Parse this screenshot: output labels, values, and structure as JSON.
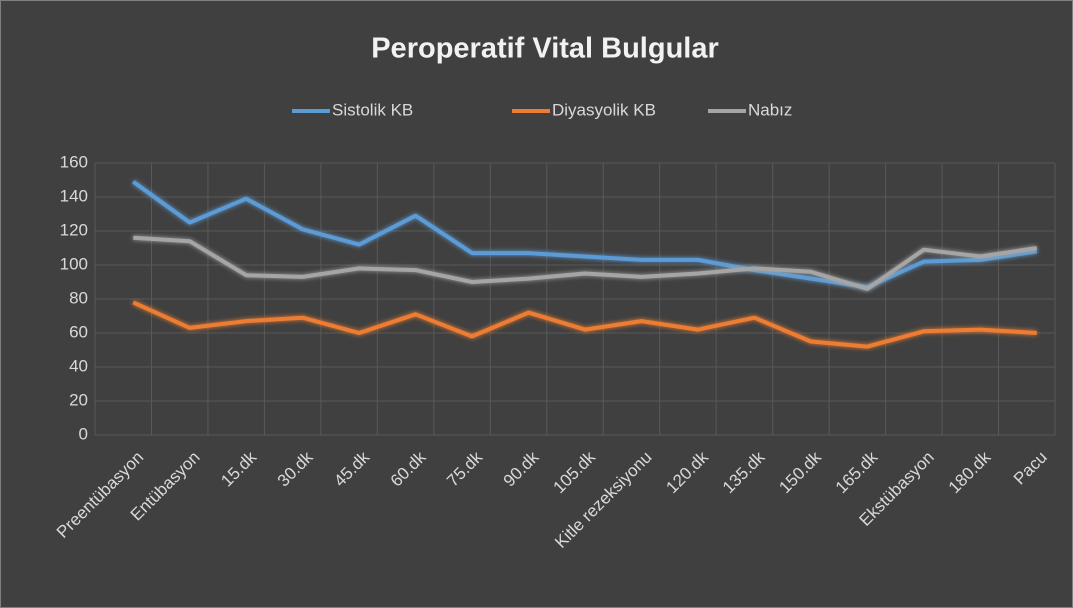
{
  "chart_data": {
    "type": "line",
    "title": "Peroperatif Vital Bulgular",
    "categories": [
      "Preentübasyon",
      "Entübasyon",
      "15.dk",
      "30.dk",
      "45.dk",
      "60.dk",
      "75.dk",
      "90.dk",
      "105.dk",
      "Kitle rezeksiyonu",
      "120.dk",
      "135.dk",
      "150.dk",
      "165.dk",
      "Ekstübasyon",
      "180.dk",
      "Pacu"
    ],
    "series": [
      {
        "name": "Sistolik KB",
        "color": "#5b9bd5",
        "values": [
          149,
          125,
          139,
          121,
          112,
          129,
          107,
          107,
          105,
          103,
          103,
          97,
          92,
          87,
          102,
          103,
          108
        ]
      },
      {
        "name": "Diyasyolik KB",
        "color": "#ed7d31",
        "values": [
          78,
          63,
          67,
          69,
          60,
          71,
          58,
          72,
          62,
          67,
          62,
          69,
          55,
          52,
          61,
          62,
          60
        ]
      },
      {
        "name": "Nabız",
        "color": "#a5a5a5",
        "values": [
          116,
          114,
          94,
          93,
          98,
          97,
          90,
          92,
          95,
          93,
          95,
          98,
          96,
          86,
          109,
          105,
          110
        ]
      }
    ],
    "ylim": [
      0,
      160
    ],
    "yticks": [
      0,
      20,
      40,
      60,
      80,
      100,
      120,
      140,
      160
    ],
    "grid": true,
    "legend": "top"
  }
}
